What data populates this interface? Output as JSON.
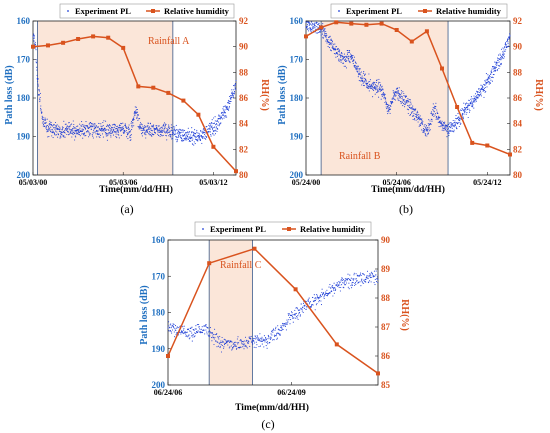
{
  "figure": {
    "legend": {
      "pl_label": "Experiment PL",
      "rh_label": "Relative humidity"
    },
    "ylabel_left": "Path loss (dB)",
    "ylabel_right": "RH(%)",
    "xlabel": "Time(mm/dd/HH)"
  },
  "colors": {
    "pl": "#1f3fd6",
    "rh": "#d9531e",
    "axis_left": "#1f6fc0",
    "axis_right": "#d9531e",
    "rain_fill": "#fbe6d9",
    "rain_edge": "#3b5a8a"
  },
  "chart_data": [
    {
      "type": "scatter+line",
      "panel_label": "(a)",
      "rain_label": "Rainfall A",
      "x_ticks": [
        "05/03/00",
        "05/03/06",
        "05/03/12"
      ],
      "x_tick_hours": [
        0,
        6,
        12
      ],
      "x_range_hours": [
        0,
        13.5
      ],
      "rain_span_hours": [
        0.3,
        9.3
      ],
      "ylabel_left": "Path loss (dB)",
      "ylim_left": [
        200,
        160
      ],
      "yticks_left": [
        "160",
        "170",
        "180",
        "190",
        "200"
      ],
      "ylabel_right": "RH(%)",
      "ylim_right": [
        80,
        92
      ],
      "yticks_right": [
        "80",
        "82",
        "84",
        "86",
        "88",
        "90",
        "92"
      ],
      "rh_series": {
        "name": "Relative humidity",
        "x": [
          0,
          1,
          2,
          3,
          4,
          5,
          6,
          7,
          8,
          9,
          10,
          11,
          12,
          13.5
        ],
        "y": [
          90.0,
          90.1,
          90.3,
          90.6,
          90.8,
          90.7,
          89.9,
          86.9,
          86.8,
          86.4,
          85.8,
          84.7,
          82.2,
          80.3
        ]
      },
      "pl_series": {
        "name": "Experiment PL",
        "x": [
          0,
          0.15,
          0.3,
          0.6,
          1,
          2,
          3,
          4,
          5,
          6,
          6.5,
          6.8,
          7.2,
          8,
          9,
          9.6,
          10.5,
          11,
          11.6,
          12.2,
          13,
          13.5
        ],
        "y": [
          163,
          166,
          175,
          185,
          188,
          188.5,
          188.5,
          188,
          188.5,
          188,
          189,
          183,
          188,
          188,
          188.5,
          189.5,
          190,
          190,
          189,
          187,
          182,
          177
        ]
      }
    },
    {
      "type": "scatter+line",
      "panel_label": "(b)",
      "rain_label": "Rainfall B",
      "x_ticks": [
        "05/24/00",
        "05/24/06",
        "05/24/12"
      ],
      "x_tick_hours": [
        0,
        6,
        12
      ],
      "x_range_hours": [
        0,
        13.5
      ],
      "rain_span_hours": [
        1.0,
        9.4
      ],
      "ylabel_left": "Path loss (dB)",
      "ylim_left": [
        200,
        160
      ],
      "yticks_left": [
        "160",
        "170",
        "180",
        "190",
        "200"
      ],
      "ylabel_right": "RH(%)",
      "ylim_right": [
        80,
        92
      ],
      "yticks_right": [
        "80",
        "82",
        "84",
        "86",
        "88",
        "90",
        "92"
      ],
      "rh_series": {
        "name": "Relative humidity",
        "x": [
          0,
          1,
          2,
          3,
          4,
          5,
          6,
          7,
          8,
          9,
          10,
          11,
          12,
          13.5
        ],
        "y": [
          90.8,
          91.5,
          91.9,
          91.8,
          91.7,
          91.8,
          91.3,
          90.4,
          91.2,
          88.3,
          85.3,
          82.5,
          82.3,
          81.6
        ]
      },
      "pl_series": {
        "name": "Experiment PL",
        "x": [
          0,
          1,
          1.5,
          2,
          2.5,
          3,
          3.5,
          4,
          5,
          5.5,
          6,
          6.5,
          7,
          7.5,
          8,
          8.5,
          9,
          9.5,
          10,
          11,
          12,
          13,
          13.5
        ],
        "y": [
          161,
          162,
          165,
          168,
          170,
          169,
          174,
          176,
          178,
          183,
          178,
          181,
          183,
          186,
          189,
          183,
          187,
          188,
          186,
          181,
          176,
          169,
          164
        ]
      }
    },
    {
      "type": "scatter+line",
      "panel_label": "(c)",
      "rain_label": "Rainfall C",
      "x_ticks": [
        "06/24/06",
        "06/24/09"
      ],
      "x_tick_hours": [
        0,
        3
      ],
      "x_range_hours": [
        0,
        5.1
      ],
      "rain_span_hours": [
        1.0,
        2.05
      ],
      "ylabel_left": "Path loss (dB)",
      "ylim_left": [
        200,
        160
      ],
      "yticks_left": [
        "160",
        "170",
        "180",
        "190",
        "200"
      ],
      "ylabel_right": "RH(%)",
      "ylim_right": [
        85,
        90
      ],
      "yticks_right": [
        "85",
        "86",
        "87",
        "88",
        "89",
        "90"
      ],
      "rh_series": {
        "name": "Relative humidity",
        "x": [
          0,
          1,
          2.1,
          3.1,
          4.1,
          5.1
        ],
        "y": [
          86.0,
          89.2,
          89.7,
          88.3,
          86.4,
          85.4
        ]
      },
      "pl_series": {
        "name": "Experiment PL",
        "x": [
          0,
          0.3,
          0.6,
          0.9,
          1.2,
          1.6,
          2,
          2.4,
          2.7,
          3,
          3.4,
          3.8,
          4.2,
          4.6,
          5.1
        ],
        "y": [
          184,
          185,
          186,
          184,
          188,
          189,
          188,
          188,
          185,
          181,
          178,
          175,
          172,
          171,
          170
        ]
      }
    }
  ]
}
